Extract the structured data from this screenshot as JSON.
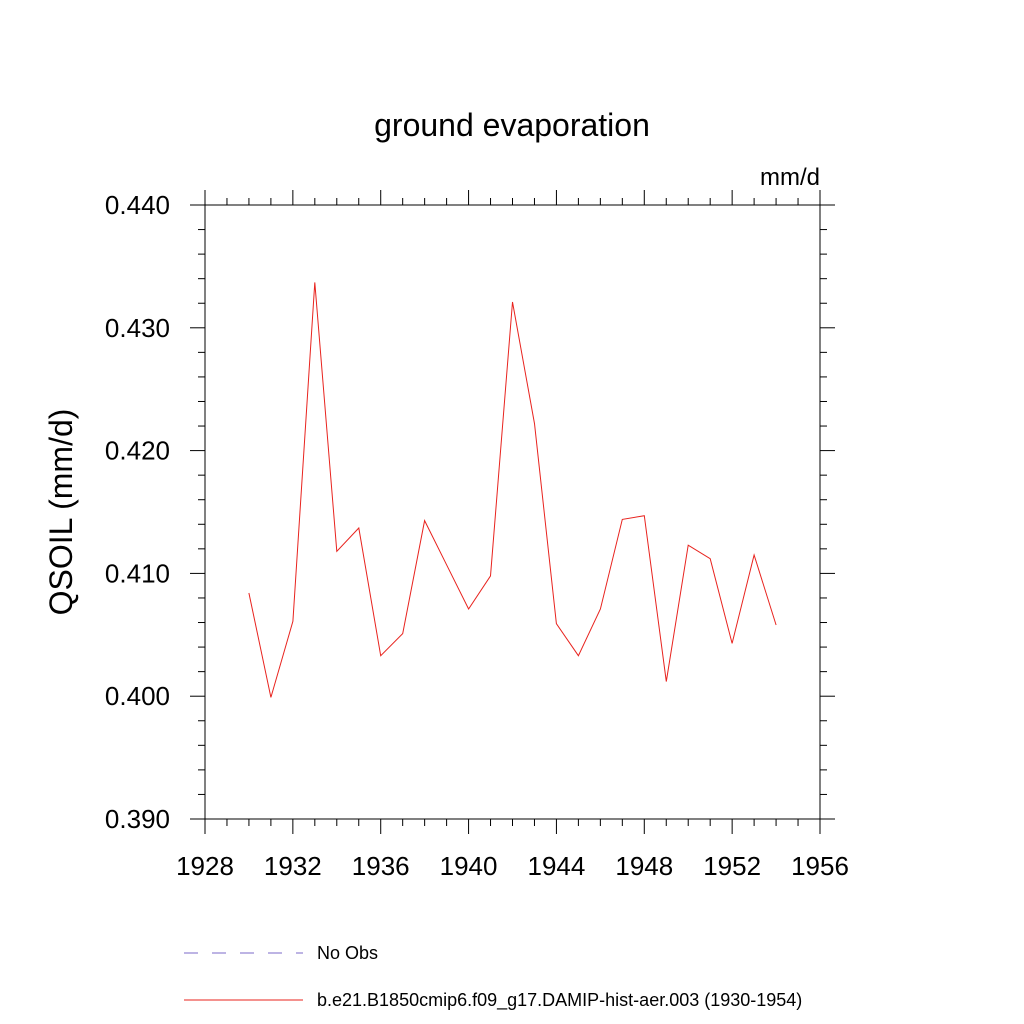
{
  "chart_data": {
    "type": "line",
    "title": "ground evaporation",
    "units": "mm/d",
    "ylabel": "QSOIL  (mm/d)",
    "xlabel": "",
    "xlim": [
      1928,
      1956
    ],
    "ylim": [
      0.39,
      0.44
    ],
    "x_ticks": [
      "1928",
      "1932",
      "1936",
      "1940",
      "1944",
      "1948",
      "1952",
      "1956"
    ],
    "y_ticks": [
      "0.390",
      "0.400",
      "0.410",
      "0.420",
      "0.430",
      "0.440"
    ],
    "grid": false,
    "legend_position": "bottom",
    "series": [
      {
        "name": "b.e21.B1850cmip6.f09_g17.DAMIP-hist-aer.003 (1930-1954)",
        "color": "#e8231e",
        "style": "solid",
        "x": [
          1930,
          1931,
          1932,
          1933,
          1934,
          1935,
          1936,
          1937,
          1938,
          1939,
          1940,
          1941,
          1942,
          1943,
          1944,
          1945,
          1946,
          1947,
          1948,
          1949,
          1950,
          1951,
          1952,
          1953,
          1954
        ],
        "values": [
          0.4084,
          0.3999,
          0.4061,
          0.4337,
          0.4118,
          0.4137,
          0.4033,
          0.4051,
          0.4143,
          0.4107,
          0.4071,
          0.4098,
          0.4321,
          0.4222,
          0.4059,
          0.4033,
          0.4071,
          0.4144,
          0.4147,
          0.4012,
          0.4123,
          0.4112,
          0.4043,
          0.4115,
          0.4058
        ]
      }
    ],
    "legend": [
      {
        "label": "No Obs",
        "color": "#7b68c8",
        "style": "dashed"
      },
      {
        "label": "b.e21.B1850cmip6.f09_g17.DAMIP-hist-aer.003 (1930-1954)",
        "color": "#e8231e",
        "style": "solid"
      }
    ]
  }
}
